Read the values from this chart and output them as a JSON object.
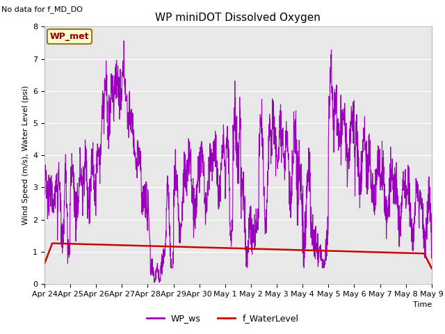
{
  "title": "WP miniDOT Dissolved Oxygen",
  "top_left_text": "No data for f_MD_DO",
  "ylabel": "Wind Speed (m/s), Water Level (psi)",
  "xlabel": "Time",
  "ylim": [
    0.0,
    8.0
  ],
  "yticks": [
    0.0,
    1.0,
    2.0,
    3.0,
    4.0,
    5.0,
    6.0,
    7.0,
    8.0
  ],
  "background_color": "#e8e8e8",
  "legend_box_text": "WP_met",
  "legend_box_bg": "#ffffcc",
  "legend_box_border": "#8b6914",
  "legend_box_text_color": "#990000",
  "legend_entries": [
    "WP_ws",
    "f_WaterLevel"
  ],
  "legend_colors": [
    "#9900bb",
    "#cc0000"
  ],
  "wp_ws_color": "#9900bb",
  "water_level_color": "#cc0000",
  "water_level_linewidth": 1.8,
  "wp_ws_linewidth": 0.8,
  "xtick_labels": [
    "Apr 24",
    "Apr 25",
    "Apr 26",
    "Apr 27",
    "Apr 28",
    "Apr 29",
    "Apr 30",
    "May 1",
    "May 2",
    "May 3",
    "May 4",
    "May 5",
    "May 6",
    "May 7",
    "May 8",
    "May 9"
  ],
  "xtick_positions": [
    0,
    1,
    2,
    3,
    4,
    5,
    6,
    7,
    8,
    9,
    10,
    11,
    12,
    13,
    14,
    15
  ],
  "title_fontsize": 11,
  "axis_label_fontsize": 8,
  "tick_fontsize": 8,
  "legend_fontsize": 9
}
